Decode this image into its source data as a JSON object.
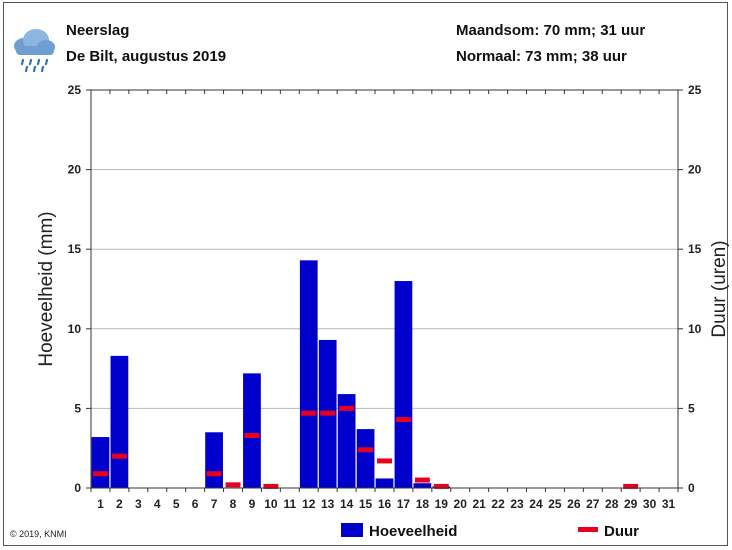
{
  "header": {
    "title": "Neerslag",
    "subtitle": "De Bilt, augustus 2019",
    "monthly_sum": "Maandsom: 70 mm; 31 uur",
    "normal": "Normaal: 73 mm; 38 uur",
    "weather_icon": "cloud-rain-icon"
  },
  "copyright": "© 2019, KNMI",
  "chart_data": {
    "type": "bar",
    "ylabel_left": "Hoeveelheid (mm)",
    "ylabel_right": "Duur (uren)",
    "ylim": [
      0,
      25
    ],
    "yticks": [
      0,
      5,
      10,
      15,
      20,
      25
    ],
    "grid": true,
    "legend_position": "bottom",
    "categories": [
      "1",
      "2",
      "3",
      "4",
      "5",
      "6",
      "7",
      "8",
      "9",
      "10",
      "11",
      "12",
      "13",
      "14",
      "15",
      "16",
      "17",
      "18",
      "19",
      "20",
      "21",
      "22",
      "23",
      "24",
      "25",
      "26",
      "27",
      "28",
      "29",
      "30",
      "31"
    ],
    "series": [
      {
        "name": "Hoeveelheid",
        "color": "#0000cc",
        "values": [
          3.2,
          8.3,
          0,
          0,
          0,
          0,
          3.5,
          0,
          7.2,
          0,
          0,
          14.3,
          9.3,
          5.9,
          3.7,
          0.6,
          13.0,
          0.3,
          0.1,
          0,
          0,
          0,
          0,
          0,
          0,
          0,
          0,
          0,
          0,
          0,
          0
        ]
      },
      {
        "name": "Duur",
        "color": "#e8001e",
        "values": [
          0.9,
          2.0,
          null,
          null,
          null,
          null,
          0.9,
          0.2,
          3.3,
          0.1,
          null,
          4.7,
          4.7,
          5.0,
          2.4,
          1.7,
          4.3,
          0.5,
          0.1,
          null,
          null,
          null,
          null,
          null,
          null,
          null,
          null,
          null,
          0.1,
          null,
          null
        ]
      }
    ]
  }
}
